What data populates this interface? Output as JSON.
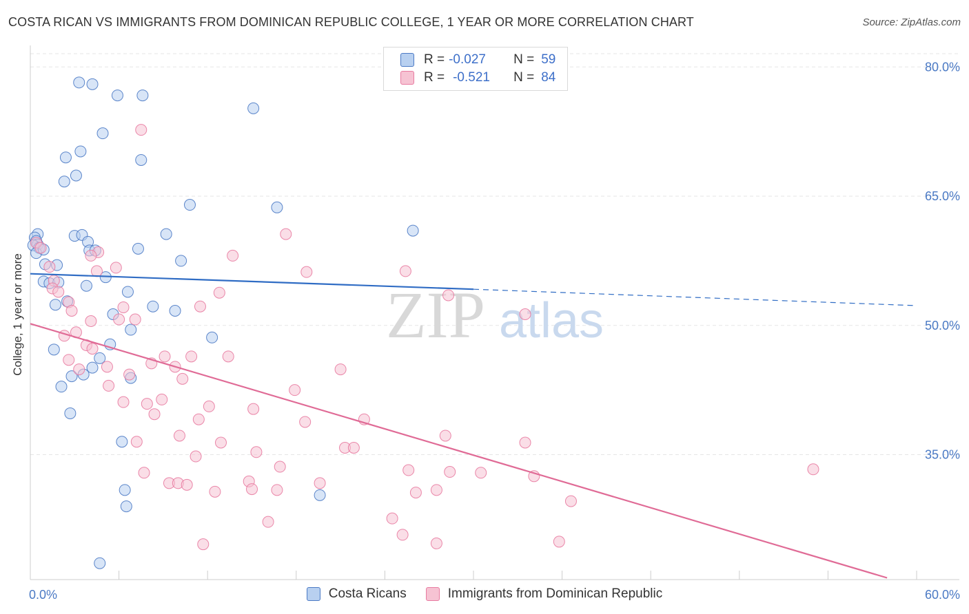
{
  "title": "COSTA RICAN VS IMMIGRANTS FROM DOMINICAN REPUBLIC COLLEGE, 1 YEAR OR MORE CORRELATION CHART",
  "source": "Source: ZipAtlas.com",
  "watermark": {
    "zip": "ZIP",
    "atlas": "atlas"
  },
  "colors": {
    "blue": "#4a79c4",
    "blue_fill": "#b8d0f0",
    "blue_line": "#2f6cc4",
    "pink": "#e87aa0",
    "pink_fill": "#f6c3d3",
    "pink_line": "#e06b96",
    "grid": "#e5e5e5"
  },
  "legend": {
    "r_label": "R =",
    "n_label": "N =",
    "series": [
      {
        "r": "-0.027",
        "n": "59"
      },
      {
        "r": "-0.521",
        "n": "84"
      }
    ]
  },
  "chart_data": {
    "type": "scatter",
    "title": "COSTA RICAN VS IMMIGRANTS FROM DOMINICAN REPUBLIC COLLEGE, 1 YEAR OR MORE CORRELATION CHART",
    "ylabel": "College, 1 year or more",
    "xlabel": "",
    "xlim": [
      0,
      60
    ],
    "ylim": [
      20.5,
      82.5
    ],
    "x_tick_labels": [
      "0.0%",
      "60.0%"
    ],
    "y_ticks": [
      {
        "value": 35,
        "label": "35.0%"
      },
      {
        "value": 50,
        "label": "50.0%"
      },
      {
        "value": 65,
        "label": "65.0%"
      },
      {
        "value": 80,
        "label": "80.0%"
      }
    ],
    "series": [
      {
        "name": "Costa Ricans",
        "color": "#4a79c4",
        "trend": {
          "x0": 0,
          "y0": 56.0,
          "x1": 30.0,
          "y1": 54.2,
          "x_dash_end": 60.0,
          "y_dash_end": 52.3
        },
        "points": [
          [
            3.3,
            78.2
          ],
          [
            4.2,
            78.0
          ],
          [
            5.9,
            76.7
          ],
          [
            7.6,
            76.7
          ],
          [
            15.1,
            75.2
          ],
          [
            4.9,
            72.3
          ],
          [
            3.4,
            70.2
          ],
          [
            2.4,
            69.5
          ],
          [
            7.5,
            69.2
          ],
          [
            3.1,
            67.4
          ],
          [
            2.3,
            66.7
          ],
          [
            10.8,
            64.0
          ],
          [
            16.7,
            63.7
          ],
          [
            0.5,
            60.6
          ],
          [
            0.3,
            60.2
          ],
          [
            0.4,
            59.8
          ],
          [
            0.5,
            59.4
          ],
          [
            0.2,
            59.3
          ],
          [
            0.6,
            59.0
          ],
          [
            0.4,
            58.4
          ],
          [
            0.9,
            58.8
          ],
          [
            3.0,
            60.4
          ],
          [
            3.5,
            60.5
          ],
          [
            3.9,
            59.7
          ],
          [
            4.0,
            58.7
          ],
          [
            4.4,
            58.7
          ],
          [
            7.3,
            58.9
          ],
          [
            9.2,
            60.6
          ],
          [
            25.9,
            61.0
          ],
          [
            10.2,
            57.5
          ],
          [
            1.0,
            57.1
          ],
          [
            1.8,
            57.0
          ],
          [
            0.9,
            55.1
          ],
          [
            1.3,
            54.9
          ],
          [
            1.9,
            55.0
          ],
          [
            5.1,
            55.6
          ],
          [
            3.8,
            54.6
          ],
          [
            6.6,
            53.9
          ],
          [
            2.5,
            52.8
          ],
          [
            1.7,
            52.4
          ],
          [
            8.3,
            52.2
          ],
          [
            9.8,
            51.7
          ],
          [
            5.6,
            51.3
          ],
          [
            6.8,
            49.5
          ],
          [
            12.3,
            48.6
          ],
          [
            5.4,
            47.8
          ],
          [
            1.6,
            47.2
          ],
          [
            4.7,
            46.2
          ],
          [
            4.2,
            45.1
          ],
          [
            3.6,
            44.3
          ],
          [
            2.8,
            44.1
          ],
          [
            6.8,
            43.9
          ],
          [
            2.1,
            42.9
          ],
          [
            2.7,
            39.8
          ],
          [
            6.2,
            36.5
          ],
          [
            6.4,
            30.9
          ],
          [
            6.5,
            29.0
          ],
          [
            19.6,
            30.3
          ],
          [
            4.7,
            22.4
          ]
        ]
      },
      {
        "name": "Immigrants from Dominican Republic",
        "color": "#e87aa0",
        "trend": {
          "x0": 0,
          "y0": 50.2,
          "x1": 58.0,
          "y1": 20.7
        },
        "points": [
          [
            7.5,
            72.7
          ],
          [
            0.4,
            59.6
          ],
          [
            0.7,
            59.0
          ],
          [
            4.6,
            58.5
          ],
          [
            4.1,
            58.1
          ],
          [
            17.3,
            60.6
          ],
          [
            13.7,
            58.1
          ],
          [
            5.8,
            56.7
          ],
          [
            4.5,
            56.3
          ],
          [
            18.7,
            56.2
          ],
          [
            25.4,
            56.3
          ],
          [
            1.3,
            56.8
          ],
          [
            1.6,
            55.2
          ],
          [
            1.5,
            54.3
          ],
          [
            1.9,
            53.9
          ],
          [
            12.8,
            53.8
          ],
          [
            28.3,
            53.5
          ],
          [
            2.6,
            52.7
          ],
          [
            6.3,
            52.1
          ],
          [
            11.5,
            52.2
          ],
          [
            2.8,
            51.7
          ],
          [
            33.5,
            51.3
          ],
          [
            6.0,
            50.7
          ],
          [
            4.1,
            50.5
          ],
          [
            7.1,
            50.7
          ],
          [
            3.1,
            49.2
          ],
          [
            2.3,
            48.8
          ],
          [
            3.8,
            47.7
          ],
          [
            4.2,
            47.3
          ],
          [
            9.1,
            46.4
          ],
          [
            10.9,
            46.4
          ],
          [
            13.4,
            46.4
          ],
          [
            2.6,
            46.0
          ],
          [
            8.2,
            45.6
          ],
          [
            5.2,
            45.2
          ],
          [
            9.8,
            45.2
          ],
          [
            3.3,
            44.9
          ],
          [
            21.0,
            44.9
          ],
          [
            6.7,
            44.3
          ],
          [
            10.3,
            43.8
          ],
          [
            5.3,
            43.0
          ],
          [
            17.9,
            42.5
          ],
          [
            8.9,
            41.4
          ],
          [
            6.3,
            41.1
          ],
          [
            7.9,
            40.9
          ],
          [
            12.1,
            40.6
          ],
          [
            15.1,
            40.3
          ],
          [
            8.4,
            39.7
          ],
          [
            11.4,
            39.1
          ],
          [
            22.6,
            39.1
          ],
          [
            18.6,
            38.8
          ],
          [
            10.1,
            37.2
          ],
          [
            28.1,
            37.2
          ],
          [
            33.5,
            36.4
          ],
          [
            7.2,
            36.5
          ],
          [
            12.9,
            36.4
          ],
          [
            21.3,
            35.8
          ],
          [
            21.9,
            35.8
          ],
          [
            15.3,
            35.3
          ],
          [
            11.2,
            34.8
          ],
          [
            16.9,
            33.6
          ],
          [
            25.6,
            33.2
          ],
          [
            7.7,
            32.9
          ],
          [
            28.4,
            33.0
          ],
          [
            30.5,
            32.9
          ],
          [
            53.0,
            33.3
          ],
          [
            34.1,
            32.5
          ],
          [
            9.4,
            31.7
          ],
          [
            10.0,
            31.7
          ],
          [
            14.8,
            31.9
          ],
          [
            19.6,
            31.7
          ],
          [
            10.6,
            31.5
          ],
          [
            15.0,
            31.0
          ],
          [
            16.7,
            30.9
          ],
          [
            12.5,
            30.7
          ],
          [
            26.1,
            30.6
          ],
          [
            27.5,
            30.9
          ],
          [
            36.6,
            29.6
          ],
          [
            24.5,
            27.6
          ],
          [
            16.1,
            27.2
          ],
          [
            25.2,
            25.7
          ],
          [
            35.8,
            24.9
          ],
          [
            11.7,
            24.6
          ],
          [
            27.5,
            24.7
          ]
        ]
      }
    ],
    "legend_entries": [
      "Costa Ricans",
      "Immigrants from Dominican Republic"
    ]
  }
}
